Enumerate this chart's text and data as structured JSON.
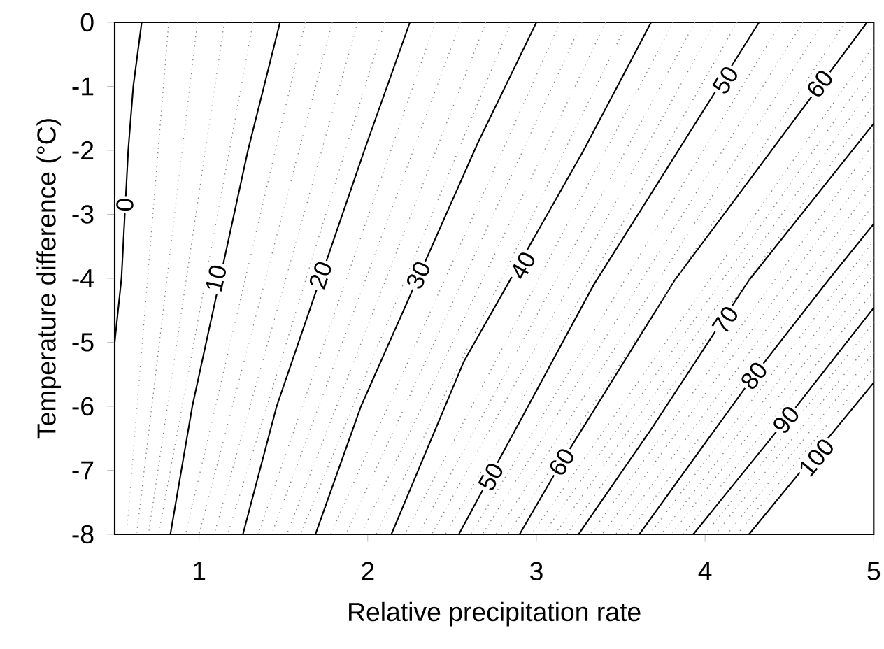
{
  "chart_data": {
    "type": "line",
    "xlabel": "Relative precipitation rate",
    "ylabel": "Temperature difference (°C)",
    "xlim": [
      0.5,
      5
    ],
    "ylim": [
      -8,
      0
    ],
    "xticks": [
      1,
      2,
      3,
      4,
      5
    ],
    "yticks": [
      0,
      -1,
      -2,
      -3,
      -4,
      -5,
      -6,
      -7,
      -8
    ],
    "marker": "none",
    "line_style": "solid",
    "series": [
      {
        "color": "#000000",
        "x": [
          0.66,
          0.61,
          0.58,
          0.56,
          0.54,
          0.5
        ],
        "values": [
          0,
          -1,
          -2,
          -3,
          -4,
          -5
        ]
      },
      {
        "color": "#000000",
        "x": [
          1.48,
          1.29,
          0.96,
          0.83
        ],
        "values": [
          0,
          -2,
          -6,
          -8
        ]
      },
      {
        "color": "#000000",
        "x": [
          2.25,
          1.98,
          1.46,
          1.26
        ],
        "values": [
          0,
          -2,
          -6,
          -8
        ]
      },
      {
        "color": "#000000",
        "x": [
          3.0,
          2.65,
          1.96,
          1.69
        ],
        "values": [
          0,
          -1.9,
          -6,
          -8
        ]
      },
      {
        "color": "#000000",
        "x": [
          3.68,
          3.28,
          2.57,
          2.14
        ],
        "values": [
          0,
          -2,
          -5.3,
          -8
        ]
      },
      {
        "color": "#000000",
        "x": [
          4.32,
          3.34,
          2.54
        ],
        "values": [
          0,
          -4.1,
          -8
        ]
      },
      {
        "color": "#000000",
        "x": [
          4.96,
          3.82,
          3.15,
          2.9
        ],
        "values": [
          0,
          -4.03,
          -6.87,
          -8
        ]
      },
      {
        "color": "#000000",
        "x": [
          5,
          4.26,
          3.68,
          3.25
        ],
        "values": [
          -1.58,
          -4.03,
          -6.36,
          -8
        ]
      },
      {
        "color": "#000000",
        "x": [
          5,
          4.73,
          4.29,
          3.61
        ],
        "values": [
          -3.15,
          -4.03,
          -5.52,
          -8
        ]
      },
      {
        "color": "#000000",
        "x": [
          5,
          4.48,
          3.93
        ],
        "values": [
          -4.46,
          -6.21,
          -8
        ]
      },
      {
        "color": "#000000",
        "x": [
          5,
          4.26
        ],
        "values": [
          -5.63,
          -8
        ]
      },
      {
        "color": "#808080",
        "line_style": "dotted",
        "x": [
          0.82,
          0.57
        ],
        "values": [
          0,
          -8
        ]
      },
      {
        "color": "#808080",
        "line_style": "dotted",
        "x": [
          0.99,
          0.63
        ],
        "values": [
          0,
          -8
        ]
      },
      {
        "color": "#808080",
        "line_style": "dotted",
        "x": [
          1.15,
          0.7
        ],
        "values": [
          0,
          -8
        ]
      },
      {
        "color": "#808080",
        "line_style": "dotted",
        "x": [
          1.32,
          0.76
        ],
        "values": [
          0,
          -8
        ]
      },
      {
        "color": "#808080",
        "line_style": "dotted",
        "x": [
          1.63,
          0.92
        ],
        "values": [
          0,
          -8
        ]
      },
      {
        "color": "#808080",
        "line_style": "dotted",
        "x": [
          1.79,
          1.0
        ],
        "values": [
          0,
          -8
        ]
      },
      {
        "color": "#808080",
        "line_style": "dotted",
        "x": [
          1.94,
          1.09
        ],
        "values": [
          0,
          -8
        ]
      },
      {
        "color": "#808080",
        "line_style": "dotted",
        "x": [
          2.1,
          1.17
        ],
        "values": [
          0,
          -8
        ]
      },
      {
        "color": "#808080",
        "line_style": "dotted",
        "x": [
          2.4,
          1.35
        ],
        "values": [
          0,
          -8
        ]
      },
      {
        "color": "#808080",
        "line_style": "dotted",
        "x": [
          2.55,
          1.43
        ],
        "values": [
          0,
          -8
        ]
      },
      {
        "color": "#808080",
        "line_style": "dotted",
        "x": [
          2.7,
          1.52
        ],
        "values": [
          0,
          -8
        ]
      },
      {
        "color": "#808080",
        "line_style": "dotted",
        "x": [
          2.85,
          1.6
        ],
        "values": [
          0,
          -8
        ]
      },
      {
        "color": "#808080",
        "line_style": "dotted",
        "x": [
          3.14,
          1.78
        ],
        "values": [
          0,
          -8
        ]
      },
      {
        "color": "#808080",
        "line_style": "dotted",
        "x": [
          3.27,
          1.87
        ],
        "values": [
          0,
          -8
        ]
      },
      {
        "color": "#808080",
        "line_style": "dotted",
        "x": [
          3.41,
          1.96
        ],
        "values": [
          0,
          -8
        ]
      },
      {
        "color": "#808080",
        "line_style": "dotted",
        "x": [
          3.54,
          2.05
        ],
        "values": [
          0,
          -8
        ]
      },
      {
        "color": "#808080",
        "line_style": "dotted",
        "x": [
          3.81,
          2.22
        ],
        "values": [
          0,
          -8
        ]
      },
      {
        "color": "#808080",
        "line_style": "dotted",
        "x": [
          3.94,
          2.3
        ],
        "values": [
          0,
          -8
        ]
      },
      {
        "color": "#808080",
        "line_style": "dotted",
        "x": [
          4.06,
          2.38
        ],
        "values": [
          0,
          -8
        ]
      },
      {
        "color": "#808080",
        "line_style": "dotted",
        "x": [
          4.19,
          2.46
        ],
        "values": [
          0,
          -8
        ]
      },
      {
        "color": "#808080",
        "line_style": "dotted",
        "x": [
          4.45,
          2.61
        ],
        "values": [
          0,
          -8
        ]
      },
      {
        "color": "#808080",
        "line_style": "dotted",
        "x": [
          4.58,
          2.68
        ],
        "values": [
          0,
          -8
        ]
      },
      {
        "color": "#808080",
        "line_style": "dotted",
        "x": [
          4.7,
          2.76
        ],
        "values": [
          0,
          -8
        ]
      },
      {
        "color": "#808080",
        "line_style": "dotted",
        "x": [
          4.83,
          2.83
        ],
        "values": [
          0,
          -8
        ]
      },
      {
        "color": "#808080",
        "line_style": "dotted",
        "x": [
          5,
          2.97
        ],
        "values": [
          -0.36,
          -8
        ]
      },
      {
        "color": "#808080",
        "line_style": "dotted",
        "x": [
          5,
          3.04
        ],
        "values": [
          -0.67,
          -8
        ]
      },
      {
        "color": "#808080",
        "line_style": "dotted",
        "x": [
          5,
          3.11
        ],
        "values": [
          -0.97,
          -8
        ]
      },
      {
        "color": "#808080",
        "line_style": "dotted",
        "x": [
          5,
          3.18
        ],
        "values": [
          -1.28,
          -8
        ]
      },
      {
        "color": "#808080",
        "line_style": "dotted",
        "x": [
          5,
          3.32
        ],
        "values": [
          -1.89,
          -8
        ]
      },
      {
        "color": "#808080",
        "line_style": "dotted",
        "x": [
          5,
          3.39
        ],
        "values": [
          -2.21,
          -8
        ]
      },
      {
        "color": "#808080",
        "line_style": "dotted",
        "x": [
          5,
          3.47
        ],
        "values": [
          -2.52,
          -8
        ]
      },
      {
        "color": "#808080",
        "line_style": "dotted",
        "x": [
          5,
          3.54
        ],
        "values": [
          -2.84,
          -8
        ]
      },
      {
        "color": "#808080",
        "line_style": "dotted",
        "x": [
          5,
          3.67
        ],
        "values": [
          -3.41,
          -8
        ]
      },
      {
        "color": "#808080",
        "line_style": "dotted",
        "x": [
          5,
          3.74
        ],
        "values": [
          -3.67,
          -8
        ]
      },
      {
        "color": "#808080",
        "line_style": "dotted",
        "x": [
          5,
          3.8
        ],
        "values": [
          -3.94,
          -8
        ]
      },
      {
        "color": "#808080",
        "line_style": "dotted",
        "x": [
          5,
          3.87
        ],
        "values": [
          -4.2,
          -8
        ]
      },
      {
        "color": "#808080",
        "line_style": "dotted",
        "x": [
          5,
          4.0
        ],
        "values": [
          -4.69,
          -8
        ]
      },
      {
        "color": "#808080",
        "line_style": "dotted",
        "x": [
          5,
          4.06
        ],
        "values": [
          -4.93,
          -8
        ]
      },
      {
        "color": "#808080",
        "line_style": "dotted",
        "x": [
          5,
          4.13
        ],
        "values": [
          -5.16,
          -8
        ]
      },
      {
        "color": "#808080",
        "line_style": "dotted",
        "x": [
          5,
          4.19
        ],
        "values": [
          -5.4,
          -8
        ]
      }
    ],
    "annotations": [
      {
        "text": "0",
        "x": 0.56,
        "y": -2.85
      },
      {
        "text": "10",
        "x": 1.1,
        "y": -4.0
      },
      {
        "text": "20",
        "x": 1.72,
        "y": -3.95
      },
      {
        "text": "30",
        "x": 2.3,
        "y": -3.95
      },
      {
        "text": "40",
        "x": 2.92,
        "y": -3.8
      },
      {
        "text": "50",
        "x": 4.12,
        "y": -0.9
      },
      {
        "text": "60",
        "x": 4.68,
        "y": -0.96
      },
      {
        "text": "50",
        "x": 2.73,
        "y": -7.1
      },
      {
        "text": "60",
        "x": 3.15,
        "y": -6.87
      },
      {
        "text": "70",
        "x": 4.12,
        "y": -4.65
      },
      {
        "text": "80",
        "x": 4.29,
        "y": -5.52
      },
      {
        "text": "90",
        "x": 4.48,
        "y": -6.21
      },
      {
        "text": "100",
        "x": 4.66,
        "y": -6.8
      }
    ]
  }
}
